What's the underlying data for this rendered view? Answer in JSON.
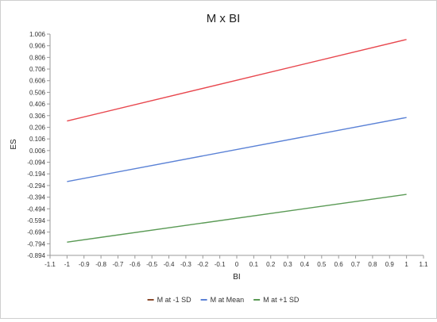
{
  "colors": {
    "axis": "#999999",
    "grid": "#e8e8e8"
  },
  "chart_data": {
    "type": "line",
    "title": "M x BI",
    "xlabel": "BI",
    "ylabel": "ES",
    "xlim": [
      -1.1,
      1.1
    ],
    "ylim": [
      -0.894,
      1.006
    ],
    "x_ticks": [
      -1.1,
      -1,
      -0.9,
      -0.8,
      -0.7,
      -0.6,
      -0.5,
      -0.4,
      -0.3,
      -0.2,
      -0.1,
      0,
      0.1,
      0.2,
      0.3,
      0.4,
      0.5,
      0.6,
      0.7,
      0.8,
      0.9,
      1,
      1.1
    ],
    "x_tick_labels": [
      "-1.1",
      "-1",
      "-0.9",
      "-0.8",
      "-0.7",
      "-0.6",
      "-0.5",
      "-0.4",
      "-0.3",
      "-0.2",
      "-0.1",
      "0",
      "0.1",
      "0.2",
      "0.3",
      "0.4",
      "0.5",
      "0.6",
      "0.7",
      "0.8",
      "0.9",
      "1",
      "1.1"
    ],
    "y_ticks": [
      1.006,
      0.906,
      0.806,
      0.706,
      0.606,
      0.506,
      0.406,
      0.306,
      0.206,
      0.106,
      0.006,
      -0.094,
      -0.194,
      -0.294,
      -0.394,
      -0.494,
      -0.594,
      -0.694,
      -0.794,
      -0.894
    ],
    "y_tick_labels": [
      "1.006",
      "0.906",
      "0.806",
      "0.706",
      "0.606",
      "0.506",
      "0.406",
      "0.306",
      "0.206",
      "0.106",
      "0.006",
      "-0.094",
      "-0.194",
      "-0.294",
      "-0.394",
      "-0.494",
      "-0.594",
      "-0.694",
      "-0.794",
      "-0.894"
    ],
    "grid": false,
    "legend_position": "bottom",
    "series": [
      {
        "name": "M at -1 SD",
        "color": "#e8474e",
        "legend_color": "#8b4a2b",
        "x": [
          -1,
          1
        ],
        "y": [
          0.26,
          0.96
        ]
      },
      {
        "name": "M at Mean",
        "color": "#5b82d6",
        "legend_color": "#5b82d6",
        "x": [
          -1,
          1
        ],
        "y": [
          -0.26,
          0.29
        ]
      },
      {
        "name": "M at +1 SD",
        "color": "#5a9a55",
        "legend_color": "#5a9a55",
        "x": [
          -1,
          1
        ],
        "y": [
          -0.78,
          -0.37
        ]
      }
    ]
  }
}
